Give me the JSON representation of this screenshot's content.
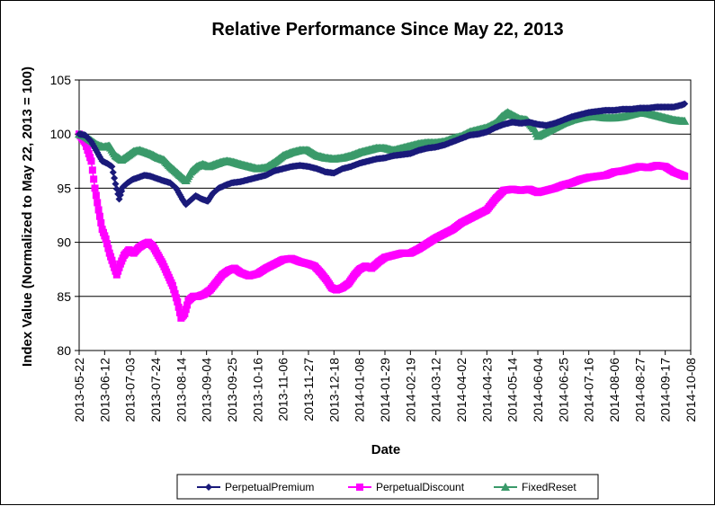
{
  "chart_data": {
    "type": "line",
    "title": "Relative Performance Since May 22, 2013",
    "xlabel": "Date",
    "ylabel": "Index Value (Normalized to May 22, 2013 = 100)",
    "ylim": [
      80,
      105
    ],
    "yticks": [
      80,
      85,
      90,
      95,
      100,
      105
    ],
    "x_start": "2013-05-22",
    "x_end": "2014-10-08",
    "xticks": [
      "2013-05-22",
      "2013-06-12",
      "2013-07-03",
      "2013-07-24",
      "2013-08-14",
      "2013-09-04",
      "2013-09-25",
      "2013-10-16",
      "2013-11-06",
      "2013-11-27",
      "2013-12-18",
      "2014-01-08",
      "2014-01-29",
      "2014-02-19",
      "2014-03-12",
      "2014-04-02",
      "2014-04-23",
      "2014-05-14",
      "2014-06-04",
      "2014-06-25",
      "2014-07-16",
      "2014-08-06",
      "2014-08-27",
      "2014-09-17",
      "2014-10-08"
    ],
    "grid": true,
    "legend_position": "bottom",
    "series": [
      {
        "name": "PerpetualPremium",
        "color": "#1a1a7a",
        "marker": "diamond",
        "x": [
          "2013-05-22",
          "2013-05-27",
          "2013-06-01",
          "2013-06-06",
          "2013-06-10",
          "2013-06-14",
          "2013-06-18",
          "2013-06-21",
          "2013-06-24",
          "2013-06-27",
          "2013-07-01",
          "2013-07-05",
          "2013-07-10",
          "2013-07-15",
          "2013-07-20",
          "2013-07-25",
          "2013-07-30",
          "2013-08-05",
          "2013-08-10",
          "2013-08-15",
          "2013-08-18",
          "2013-08-21",
          "2013-08-26",
          "2013-08-31",
          "2013-09-05",
          "2013-09-09",
          "2013-09-14",
          "2013-09-20",
          "2013-09-25",
          "2013-10-02",
          "2013-10-09",
          "2013-10-16",
          "2013-10-23",
          "2013-10-30",
          "2013-11-06",
          "2013-11-13",
          "2013-11-20",
          "2013-11-27",
          "2013-12-04",
          "2013-12-11",
          "2013-12-18",
          "2013-12-25",
          "2014-01-01",
          "2014-01-08",
          "2014-01-15",
          "2014-01-22",
          "2014-01-29",
          "2014-02-05",
          "2014-02-12",
          "2014-02-19",
          "2014-02-26",
          "2014-03-05",
          "2014-03-12",
          "2014-03-19",
          "2014-03-26",
          "2014-04-02",
          "2014-04-09",
          "2014-04-16",
          "2014-04-23",
          "2014-04-30",
          "2014-05-07",
          "2014-05-14",
          "2014-05-21",
          "2014-05-28",
          "2014-06-04",
          "2014-06-11",
          "2014-06-18",
          "2014-06-25",
          "2014-07-02",
          "2014-07-09",
          "2014-07-16",
          "2014-07-23",
          "2014-07-30",
          "2014-08-06",
          "2014-08-13",
          "2014-08-20",
          "2014-08-27",
          "2014-09-03",
          "2014-09-10",
          "2014-09-17",
          "2014-09-24",
          "2014-10-01",
          "2014-10-03"
        ],
        "y": [
          100.0,
          99.9,
          99.3,
          98.3,
          97.5,
          97.3,
          97.0,
          95.4,
          94.0,
          95.1,
          95.5,
          95.8,
          96.0,
          96.2,
          96.1,
          95.9,
          95.7,
          95.5,
          95.0,
          94.0,
          93.5,
          93.8,
          94.3,
          94.0,
          93.8,
          94.5,
          95.0,
          95.3,
          95.5,
          95.6,
          95.8,
          96.0,
          96.2,
          96.6,
          96.8,
          97.0,
          97.1,
          97.0,
          96.8,
          96.5,
          96.4,
          96.8,
          97.0,
          97.3,
          97.5,
          97.7,
          97.8,
          98.0,
          98.1,
          98.2,
          98.5,
          98.7,
          98.8,
          99.0,
          99.3,
          99.6,
          99.9,
          100.0,
          100.2,
          100.6,
          100.9,
          101.1,
          101.0,
          101.1,
          100.9,
          100.8,
          101.0,
          101.3,
          101.6,
          101.8,
          102.0,
          102.1,
          102.2,
          102.2,
          102.3,
          102.3,
          102.4,
          102.4,
          102.5,
          102.5,
          102.5,
          102.7,
          102.8
        ]
      },
      {
        "name": "PerpetualDiscount",
        "color": "#ff00ff",
        "marker": "square",
        "x": [
          "2013-05-22",
          "2013-05-27",
          "2013-06-01",
          "2013-06-04",
          "2013-06-07",
          "2013-06-10",
          "2013-06-13",
          "2013-06-16",
          "2013-06-19",
          "2013-06-22",
          "2013-06-25",
          "2013-06-28",
          "2013-07-02",
          "2013-07-06",
          "2013-07-10",
          "2013-07-14",
          "2013-07-18",
          "2013-07-22",
          "2013-07-26",
          "2013-07-30",
          "2013-08-03",
          "2013-08-07",
          "2013-08-11",
          "2013-08-14",
          "2013-08-17",
          "2013-08-20",
          "2013-08-24",
          "2013-08-28",
          "2013-09-02",
          "2013-09-07",
          "2013-09-12",
          "2013-09-17",
          "2013-09-22",
          "2013-09-27",
          "2013-10-02",
          "2013-10-09",
          "2013-10-16",
          "2013-10-23",
          "2013-10-30",
          "2013-11-06",
          "2013-11-13",
          "2013-11-20",
          "2013-11-27",
          "2013-12-02",
          "2013-12-07",
          "2013-12-12",
          "2013-12-16",
          "2013-12-20",
          "2013-12-25",
          "2013-12-30",
          "2014-01-04",
          "2014-01-08",
          "2014-01-13",
          "2014-01-18",
          "2014-01-24",
          "2014-01-29",
          "2014-02-05",
          "2014-02-12",
          "2014-02-19",
          "2014-02-26",
          "2014-03-05",
          "2014-03-12",
          "2014-03-19",
          "2014-03-26",
          "2014-04-02",
          "2014-04-09",
          "2014-04-16",
          "2014-04-23",
          "2014-04-30",
          "2014-05-07",
          "2014-05-14",
          "2014-05-21",
          "2014-05-28",
          "2014-06-04",
          "2014-06-11",
          "2014-06-18",
          "2014-06-25",
          "2014-07-02",
          "2014-07-09",
          "2014-07-16",
          "2014-07-23",
          "2014-07-30",
          "2014-08-06",
          "2014-08-13",
          "2014-08-20",
          "2014-08-27",
          "2014-09-03",
          "2014-09-10",
          "2014-09-17",
          "2014-09-24",
          "2014-10-01",
          "2014-10-03"
        ],
        "y": [
          100.0,
          99.2,
          97.5,
          95.0,
          93.0,
          91.2,
          90.3,
          89.0,
          88.0,
          87.0,
          88.0,
          88.8,
          89.3,
          89.0,
          89.5,
          89.8,
          90.0,
          89.6,
          88.8,
          88.0,
          87.0,
          86.0,
          84.5,
          83.0,
          83.4,
          84.6,
          85.0,
          85.0,
          85.2,
          85.6,
          86.3,
          87.0,
          87.4,
          87.6,
          87.2,
          86.9,
          87.1,
          87.6,
          88.0,
          88.4,
          88.5,
          88.2,
          88.0,
          87.8,
          87.2,
          86.5,
          85.8,
          85.6,
          85.8,
          86.2,
          87.0,
          87.5,
          87.8,
          87.6,
          88.2,
          88.6,
          88.8,
          89.0,
          89.0,
          89.4,
          89.9,
          90.4,
          90.8,
          91.2,
          91.8,
          92.2,
          92.6,
          93.0,
          94.0,
          94.8,
          94.9,
          94.8,
          94.9,
          94.6,
          94.8,
          95.0,
          95.3,
          95.5,
          95.8,
          96.0,
          96.1,
          96.2,
          96.5,
          96.6,
          96.8,
          97.0,
          96.9,
          97.1,
          97.0,
          96.5,
          96.2,
          96.1
        ]
      },
      {
        "name": "FixedReset",
        "color": "#3a9a6a",
        "marker": "triangle",
        "x": [
          "2013-05-22",
          "2013-05-27",
          "2013-06-01",
          "2013-06-06",
          "2013-06-11",
          "2013-06-16",
          "2013-06-21",
          "2013-06-26",
          "2013-07-01",
          "2013-07-06",
          "2013-07-11",
          "2013-07-16",
          "2013-07-21",
          "2013-07-26",
          "2013-07-31",
          "2013-08-05",
          "2013-08-10",
          "2013-08-15",
          "2013-08-18",
          "2013-08-22",
          "2013-08-27",
          "2013-09-01",
          "2013-09-06",
          "2013-09-11",
          "2013-09-16",
          "2013-09-21",
          "2013-09-26",
          "2013-10-02",
          "2013-10-09",
          "2013-10-16",
          "2013-10-23",
          "2013-10-30",
          "2013-11-06",
          "2013-11-13",
          "2013-11-20",
          "2013-11-27",
          "2013-12-04",
          "2013-12-11",
          "2013-12-18",
          "2013-12-25",
          "2014-01-01",
          "2014-01-08",
          "2014-01-15",
          "2014-01-22",
          "2014-01-29",
          "2014-02-05",
          "2014-02-12",
          "2014-02-19",
          "2014-02-26",
          "2014-03-05",
          "2014-03-12",
          "2014-03-19",
          "2014-03-26",
          "2014-04-02",
          "2014-04-09",
          "2014-04-16",
          "2014-04-23",
          "2014-04-30",
          "2014-05-05",
          "2014-05-10",
          "2014-05-15",
          "2014-05-20",
          "2014-05-26",
          "2014-06-01",
          "2014-06-04",
          "2014-06-11",
          "2014-06-18",
          "2014-06-25",
          "2014-07-02",
          "2014-07-09",
          "2014-07-16",
          "2014-07-23",
          "2014-07-30",
          "2014-08-06",
          "2014-08-13",
          "2014-08-20",
          "2014-08-27",
          "2014-09-03",
          "2014-09-10",
          "2014-09-17",
          "2014-09-24",
          "2014-10-01",
          "2014-10-03"
        ],
        "y": [
          100.0,
          99.8,
          99.4,
          99.0,
          98.8,
          98.9,
          98.0,
          97.6,
          98.0,
          98.4,
          98.5,
          98.3,
          98.1,
          97.8,
          97.6,
          97.0,
          96.5,
          96.0,
          95.7,
          96.5,
          97.0,
          97.2,
          97.0,
          97.2,
          97.4,
          97.5,
          97.4,
          97.2,
          97.0,
          96.8,
          96.9,
          97.4,
          98.0,
          98.3,
          98.5,
          98.5,
          98.0,
          97.8,
          97.7,
          97.8,
          98.0,
          98.3,
          98.5,
          98.7,
          98.7,
          98.5,
          98.7,
          98.9,
          99.1,
          99.2,
          99.2,
          99.3,
          99.6,
          99.8,
          100.2,
          100.4,
          100.6,
          101.0,
          101.6,
          102.0,
          101.7,
          101.4,
          101.3,
          100.5,
          99.8,
          100.2,
          100.6,
          101.0,
          101.3,
          101.5,
          101.6,
          101.6,
          101.5,
          101.5,
          101.6,
          101.8,
          102.0,
          101.9,
          101.7,
          101.5,
          101.3,
          101.2,
          101.2
        ]
      }
    ]
  }
}
